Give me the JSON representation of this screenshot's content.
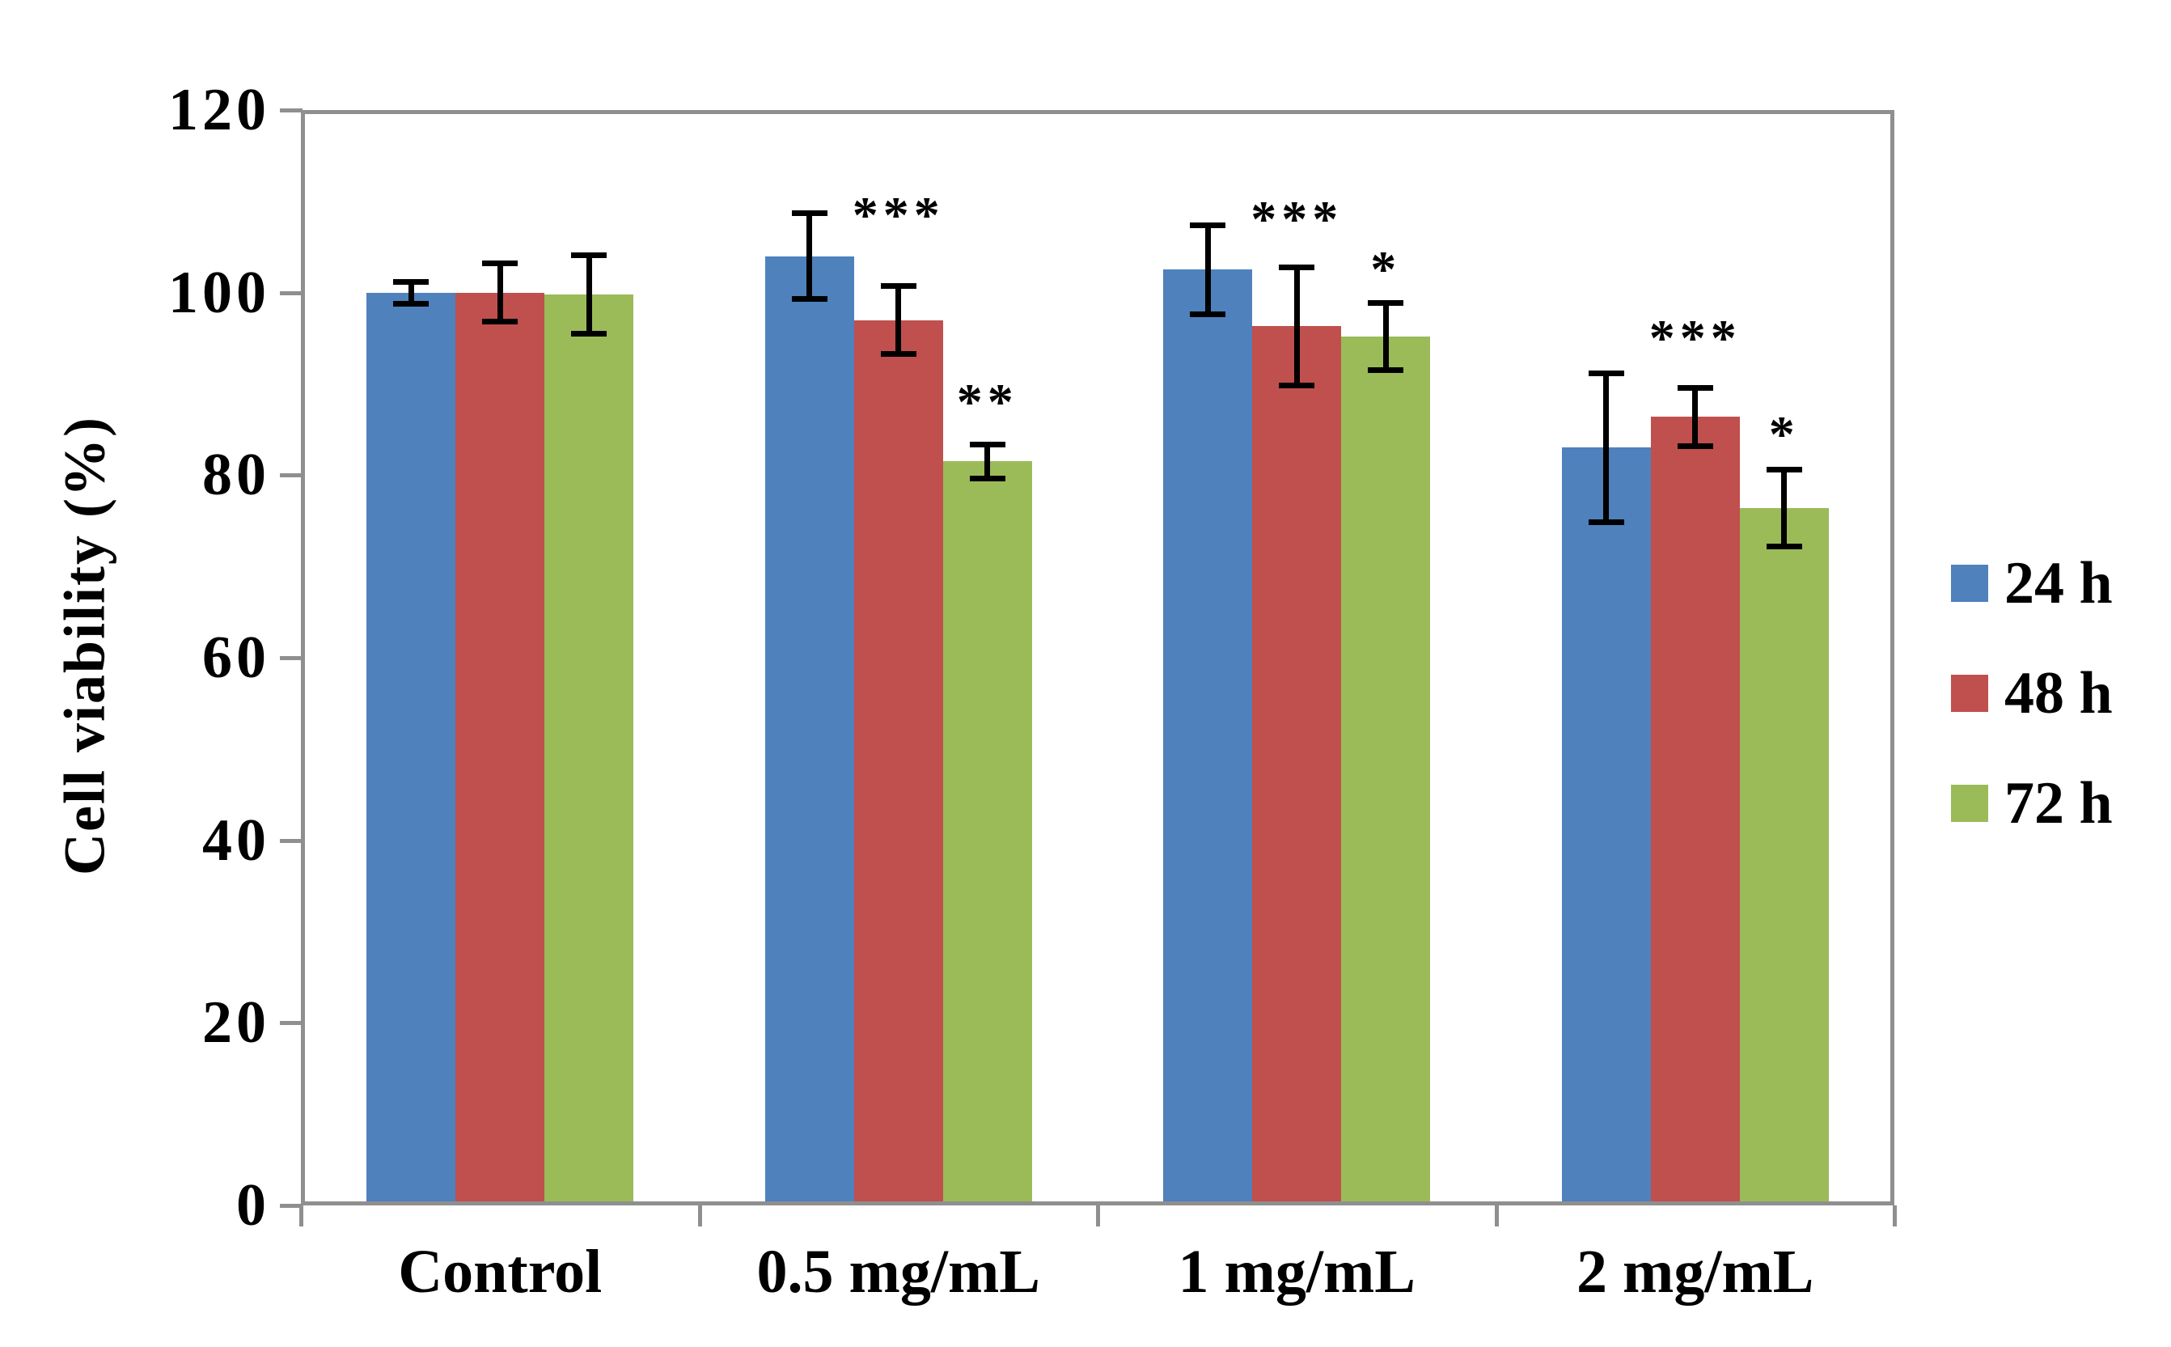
{
  "chart_data": {
    "type": "bar",
    "title": "",
    "xlabel": "",
    "ylabel": "Cell viability (%)",
    "ylim": [
      0,
      120
    ],
    "yticks": [
      "0",
      "20",
      "40",
      "60",
      "80",
      "100",
      "120"
    ],
    "ytick_values": [
      0,
      20,
      40,
      60,
      80,
      100,
      120
    ],
    "grid": false,
    "legend_position": "right-middle",
    "categories": [
      "Control",
      "0.5 mg/mL",
      "1 mg/mL",
      "2 mg/mL"
    ],
    "series": [
      {
        "name": "24 h",
        "color": "#4F81BD",
        "values": [
          100,
          104,
          102.5,
          83
        ],
        "errors": [
          1.5,
          5,
          5.2,
          8.5
        ]
      },
      {
        "name": "48 h",
        "color": "#C0504D",
        "values": [
          100,
          97,
          96.3,
          86.4
        ],
        "errors": [
          3.5,
          4,
          6.8,
          3.5
        ]
      },
      {
        "name": "72 h",
        "color": "#9BBB59",
        "values": [
          99.8,
          81.5,
          95.2,
          76.4
        ],
        "errors": [
          4.6,
          2.2,
          4,
          4.5
        ]
      }
    ],
    "annotations": [
      {
        "category_index": 1,
        "series_index": 1,
        "text": "***",
        "value": 108.5
      },
      {
        "category_index": 1,
        "series_index": 2,
        "text": "**",
        "value": 88
      },
      {
        "category_index": 2,
        "series_index": 1,
        "text": "***",
        "value": 108
      },
      {
        "category_index": 2,
        "series_index": 2,
        "text": "*",
        "value": 102.5
      },
      {
        "category_index": 3,
        "series_index": 1,
        "text": "***",
        "value": 95
      },
      {
        "category_index": 3,
        "series_index": 2,
        "text": "*",
        "value": 84.5
      }
    ],
    "error_bar_color": "#000000",
    "axis_color": "#8F8F8F",
    "text_color": "#000000",
    "background": "#FFFFFF"
  }
}
